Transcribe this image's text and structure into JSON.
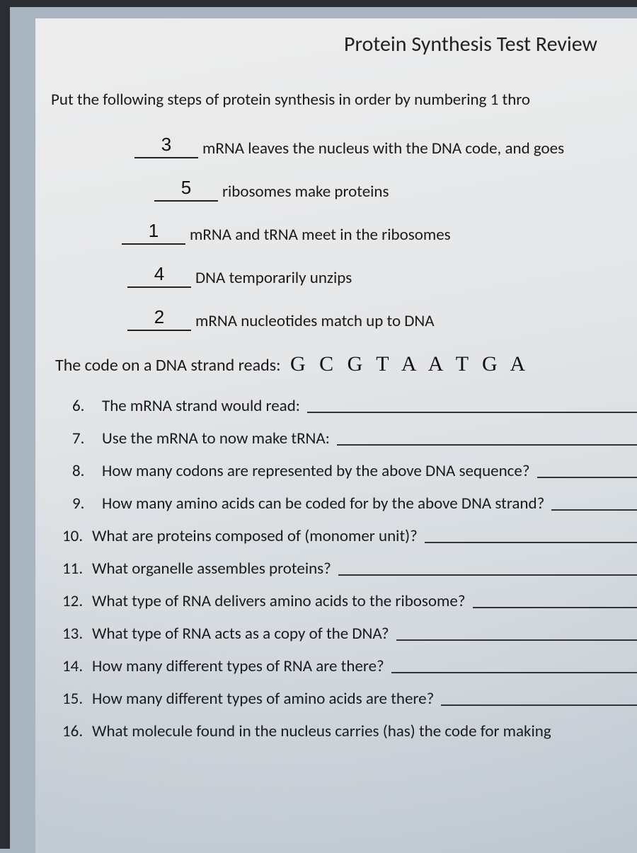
{
  "colors": {
    "bodyBg": "#a8b4c0",
    "docBgStart": "#ededed",
    "docBgEnd": "#c8d0d8",
    "text": "#1a1a1a",
    "frame": "#2a2d32",
    "underline": "#222222"
  },
  "title": "Protein Synthesis Test Review",
  "intro": "Put the following steps of protein synthesis in order by numbering 1 thro",
  "steps": [
    {
      "num": "3",
      "text": "mRNA leaves the nucleus with the DNA code, and goes"
    },
    {
      "num": "5",
      "text": "ribosomes make proteins"
    },
    {
      "num": "1",
      "text": "mRNA and tRNA meet in the ribosomes"
    },
    {
      "num": "4",
      "text": "DNA temporarily unzips"
    },
    {
      "num": "2",
      "text": "mRNA nucleotides match up to DNA"
    }
  ],
  "dna": {
    "label": "The code on a DNA strand reads:",
    "sequence": "G C G T A A T G A"
  },
  "questions": [
    {
      "n": "6.",
      "text": "The mRNA strand would read:"
    },
    {
      "n": "7.",
      "text": "Use the mRNA to now make tRNA:"
    },
    {
      "n": "8.",
      "text": "How many codons are represented by the above DNA sequence?"
    },
    {
      "n": "9.",
      "text": "How many amino acids can be coded for by the above DNA strand?"
    },
    {
      "n": "10.",
      "text": "What are proteins composed of (monomer unit)?"
    },
    {
      "n": "11.",
      "text": "What organelle assembles proteins?"
    },
    {
      "n": "12.",
      "text": "What type of RNA delivers amino acids to the ribosome?"
    },
    {
      "n": "13.",
      "text": "What type of RNA acts as a copy of the DNA?"
    },
    {
      "n": "14.",
      "text": "How many different types of RNA are there?"
    },
    {
      "n": "15.",
      "text": "How many different types of amino acids are there?"
    },
    {
      "n": "16.",
      "text": "What molecule found in the nucleus carries (has) the code for making"
    }
  ]
}
